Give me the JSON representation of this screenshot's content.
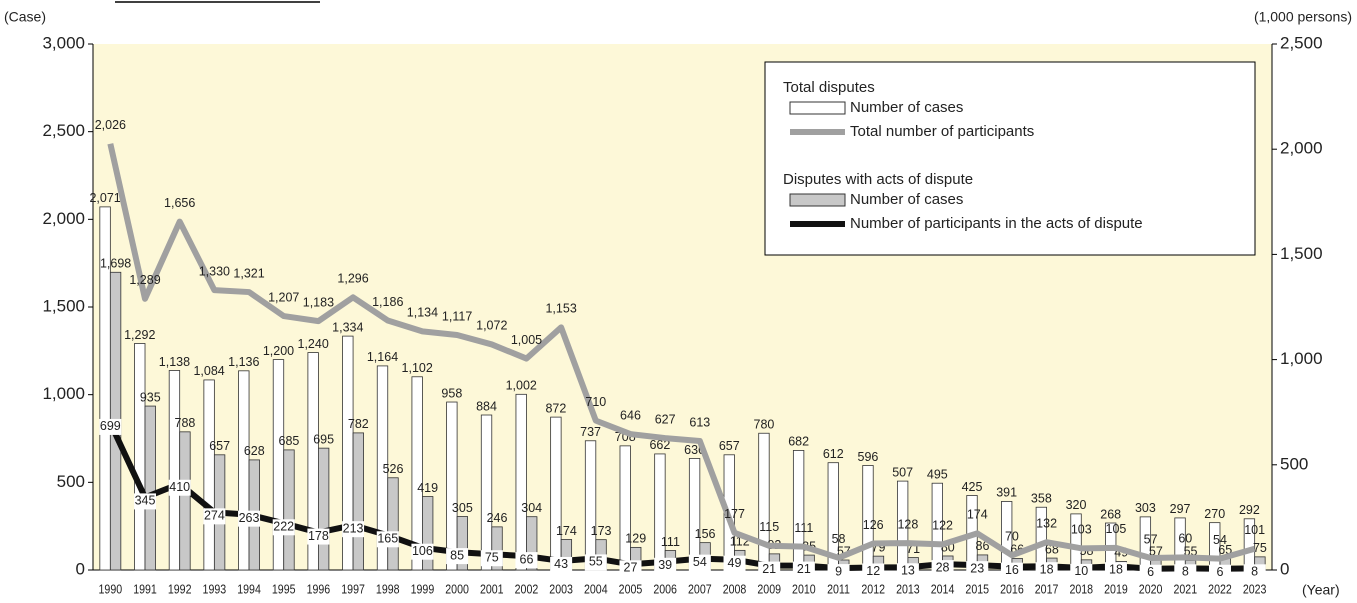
{
  "chart_data": {
    "type": "bar",
    "y_label": "(Case)",
    "y2_label": "(1,000 persons)",
    "x_label": "(Year)",
    "categories": [
      "1990",
      "1991",
      "1992",
      "1993",
      "1994",
      "1995",
      "1996",
      "1997",
      "1998",
      "1999",
      "2000",
      "2001",
      "2002",
      "2003",
      "2004",
      "2005",
      "2006",
      "2007",
      "2008",
      "2009",
      "2010",
      "2011",
      "2012",
      "2013",
      "2014",
      "2015",
      "2016",
      "2017",
      "2018",
      "2019",
      "2020",
      "2021",
      "2022",
      "2023"
    ],
    "legend_groups": [
      "Total disputes",
      "Disputes with acts of dispute"
    ],
    "series": [
      {
        "name": "Number of cases",
        "type": "bar",
        "color": "#ffffff",
        "group": 0,
        "values": [
          2071,
          1292,
          1138,
          1084,
          1136,
          1200,
          1240,
          1334,
          1164,
          1102,
          958,
          884,
          1002,
          872,
          737,
          708,
          662,
          636,
          657,
          780,
          682,
          612,
          596,
          507,
          495,
          425,
          391,
          358,
          320,
          268,
          303,
          297,
          270,
          292
        ],
        "value_labels": [
          "2,071",
          "1,292",
          "1,138",
          "1,084",
          "1,136",
          "1,200",
          "1,240",
          "1,334",
          "1,164",
          "1,102",
          "958",
          "884",
          "1,002",
          "872",
          "737",
          "708",
          "662",
          "636",
          "657",
          "780",
          "682",
          "612",
          "596",
          "507",
          "495",
          "425",
          "391",
          "358",
          "320",
          "268",
          "303",
          "297",
          "270",
          "292"
        ]
      },
      {
        "name": "Number of cases",
        "type": "bar",
        "color": "#c8c8c8",
        "group": 1,
        "values": [
          1698,
          935,
          788,
          657,
          628,
          685,
          695,
          782,
          526,
          419,
          305,
          246,
          304,
          174,
          173,
          129,
          111,
          156,
          112,
          92,
          85,
          57,
          79,
          71,
          80,
          86,
          66,
          68,
          58,
          49,
          57,
          55,
          65,
          75
        ],
        "value_labels": [
          "1,698",
          "935",
          "788",
          "657",
          "628",
          "685",
          "695",
          "782",
          "526",
          "419",
          "305",
          "246",
          "304",
          "174",
          "173",
          "129",
          "111",
          "156",
          "112",
          "92",
          "85",
          "57",
          "79",
          "71",
          "80",
          "86",
          "66",
          "68",
          "58",
          "49",
          "57",
          "55",
          "65",
          "75"
        ]
      },
      {
        "name": "Total number of participants",
        "type": "line",
        "axis": "y2",
        "color": "#a0a0a0",
        "group": 0,
        "values": [
          2026,
          1289,
          1656,
          1330,
          1321,
          1207,
          1183,
          1296,
          1186,
          1134,
          1117,
          1072,
          1005,
          1153,
          710,
          646,
          627,
          613,
          177,
          115,
          111,
          58,
          126,
          128,
          122,
          174,
          70,
          132,
          103,
          105,
          57,
          60,
          54,
          101
        ],
        "value_labels": [
          "2,026",
          "1,289",
          "1,656",
          "1,330",
          "1,321",
          "1,207",
          "1,183",
          "1,296",
          "1,186",
          "1,134",
          "1,117",
          "1,072",
          "1,005",
          "1,153",
          "710",
          "646",
          "627",
          "613",
          "177",
          "115",
          "111",
          "58",
          "126",
          "128",
          "122",
          "174",
          "70",
          "132",
          "103",
          "105",
          "57",
          "60",
          "54",
          "101"
        ]
      },
      {
        "name": "Number of participants in the acts of dispute",
        "type": "line",
        "axis": "y2",
        "color": "#111111",
        "group": 1,
        "values": [
          699,
          345,
          410,
          274,
          263,
          222,
          178,
          213,
          165,
          106,
          85,
          75,
          66,
          43,
          55,
          27,
          39,
          54,
          49,
          21,
          21,
          9,
          12,
          13,
          28,
          23,
          16,
          18,
          10,
          18,
          6,
          8,
          6,
          8
        ]
      }
    ],
    "ylim": [
      0,
      3000
    ],
    "yticks": [
      0,
      500,
      {
        "value": 1000,
        "label": "1,000"
      },
      {
        "value": 1500,
        "label": "1,500"
      },
      {
        "value": 2000,
        "label": "2,000"
      },
      {
        "value": 2500,
        "label": "2,500"
      },
      {
        "value": 3000,
        "label": "3,000"
      }
    ],
    "y2lim": [
      0,
      2500
    ],
    "y2ticks": [
      0,
      500,
      {
        "value": 1000,
        "label": "1,000"
      },
      {
        "value": 1500,
        "label": "1,500"
      },
      {
        "value": 2000,
        "label": "2,000"
      },
      {
        "value": 2500,
        "label": "2,500"
      }
    ],
    "background": "#fdf8d8"
  }
}
